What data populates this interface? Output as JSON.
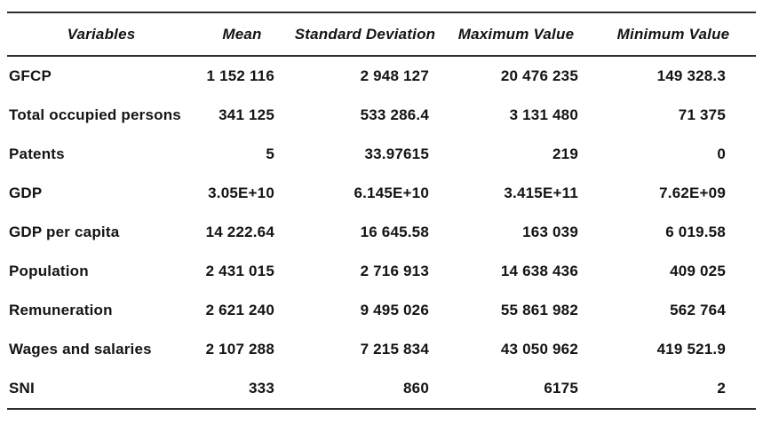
{
  "table": {
    "headers": [
      "Variables",
      "Mean",
      "Standard Deviation",
      "Maximum Value",
      "Minimum Value"
    ],
    "rows": [
      [
        "GFCP",
        "1 152 116",
        "2 948 127",
        "20 476 235",
        "149 328.3"
      ],
      [
        "Total occupied persons",
        "341 125",
        "533 286.4",
        "3 131 480",
        "71 375"
      ],
      [
        "Patents",
        "5",
        "33.97615",
        "219",
        "0"
      ],
      [
        "GDP",
        "3.05E+10",
        "6.145E+10",
        "3.415E+11",
        "7.62E+09"
      ],
      [
        "GDP per capita",
        "14 222.64",
        "16 645.58",
        "163 039",
        "6 019.58"
      ],
      [
        "Population",
        "2 431 015",
        "2 716 913",
        "14 638 436",
        "409 025"
      ],
      [
        "Remuneration",
        "2 621 240",
        "9 495 026",
        "55 861 982",
        "562 764"
      ],
      [
        "Wages and salaries",
        "2 107 288",
        "7 215 834",
        "43 050 962",
        "419 521.9"
      ],
      [
        "SNI",
        "333",
        "860",
        "6175",
        "2"
      ]
    ]
  }
}
